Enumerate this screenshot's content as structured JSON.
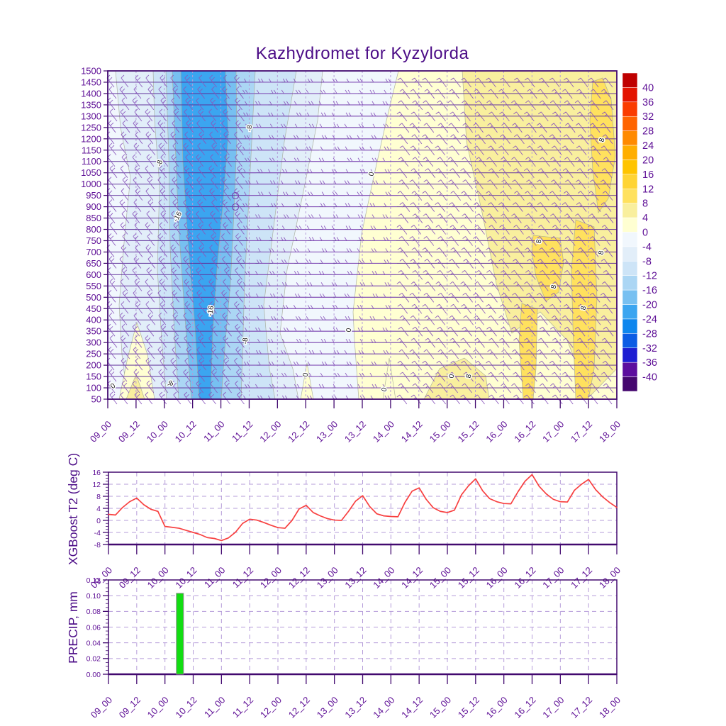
{
  "title": "Kazhydromet for Kyzylorda",
  "colors": {
    "frame": "#42096f",
    "tick_text": "#5e0f96",
    "title_text": "#4c0d87",
    "grid_dashed": "#b59cd9",
    "row_line": "#5d2e99",
    "barb": "#8a56bd",
    "contour_line": "#a3a895",
    "contour_label_text": "#1a1a1a",
    "t2_line": "#f84040",
    "precip_bar": "#12dd12",
    "precip_bar_stroke": "#8a8a8a",
    "plot_background": "#f1f7fd"
  },
  "time_labels": [
    "09_00",
    "09_12",
    "10_00",
    "10_12",
    "11_00",
    "11_12",
    "12_00",
    "12_12",
    "13_00",
    "13_12",
    "14_00",
    "14_12",
    "15_00",
    "15_12",
    "16_00",
    "16_12",
    "17_00",
    "17_12",
    "18_00"
  ],
  "chart_data": [
    {
      "type": "heatmap",
      "subtype": "contour-meteogram-with-wind-barbs",
      "title": "Kazhydromet for Kyzylorda",
      "y_ticks": [
        1500,
        1450,
        1400,
        1350,
        1300,
        1250,
        1200,
        1150,
        1100,
        1050,
        1000,
        950,
        900,
        850,
        800,
        750,
        700,
        650,
        600,
        550,
        500,
        450,
        400,
        350,
        300,
        250,
        200,
        150,
        100,
        50
      ],
      "x_tick_labels": [
        "09_00",
        "09_12",
        "10_00",
        "10_12",
        "11_00",
        "11_12",
        "12_00",
        "12_12",
        "13_00",
        "13_12",
        "14_00",
        "14_12",
        "15_00",
        "15_12",
        "16_00",
        "16_12",
        "17_00",
        "17_12",
        "18_00"
      ],
      "colorbar": {
        "tick_values": [
          40,
          36,
          32,
          28,
          24,
          20,
          16,
          12,
          8,
          4,
          0,
          -4,
          -8,
          -12,
          -16,
          -20,
          -24,
          -28,
          -32,
          -36,
          -40
        ],
        "cell_colors": [
          "#bf0000",
          "#e31400",
          "#fa3c00",
          "#ff6400",
          "#ff8a00",
          "#ffae00",
          "#ffc400",
          "#ffd435",
          "#ffe15e",
          "#f9ef9e",
          "#ffffd2",
          "#f1f7fd",
          "#e2eef9",
          "#cde4f7",
          "#abd6f4",
          "#77c0f1",
          "#3ba5f0",
          "#0d86ee",
          "#0b5ce4",
          "#1d1dd2",
          "#5c0d9e",
          "#45076f"
        ]
      },
      "bands": [
        {
          "range": "-8..-4",
          "color": "#e2eef9",
          "pts": [
            [
              163,
              100
            ],
            [
              455,
              100
            ],
            [
              448,
              170
            ],
            [
              428,
              270
            ],
            [
              405,
              380
            ],
            [
              395,
              470
            ],
            [
              413,
              520
            ],
            [
              421,
              563
            ],
            [
              180,
              563
            ],
            [
              172,
              500
            ],
            [
              168,
              430
            ],
            [
              176,
              330
            ],
            [
              184,
              250
            ],
            [
              170,
              180
            ]
          ]
        },
        {
          "range": "-12..-8",
          "color": "#cde4f7",
          "pts": [
            [
              216,
              100
            ],
            [
              418,
              100
            ],
            [
              401,
              200
            ],
            [
              386,
              320
            ],
            [
              372,
              430
            ],
            [
              380,
              520
            ],
            [
              388,
              563
            ],
            [
              235,
              563
            ],
            [
              228,
              480
            ],
            [
              222,
              380
            ],
            [
              225,
              260
            ],
            [
              218,
              170
            ]
          ]
        },
        {
          "range": "-16..-12",
          "color": "#abd6f4",
          "pts": [
            [
              234,
              100
            ],
            [
              360,
              100
            ],
            [
              355,
              200
            ],
            [
              350,
              300
            ],
            [
              345,
              400
            ],
            [
              342,
              500
            ],
            [
              340,
              563
            ],
            [
              252,
              563
            ],
            [
              246,
              470
            ],
            [
              240,
              350
            ],
            [
              238,
              220
            ]
          ]
        },
        {
          "range": "-20..-16",
          "color": "#77c0f1",
          "pts": [
            [
              243,
              100
            ],
            [
              333,
              100
            ],
            [
              334,
              200
            ],
            [
              330,
              300
            ],
            [
              325,
              400
            ],
            [
              318,
              480
            ],
            [
              312,
              563
            ],
            [
              270,
              563
            ],
            [
              261,
              450
            ],
            [
              252,
              320
            ],
            [
              247,
              200
            ]
          ]
        },
        {
          "range": "-24..-20",
          "color": "#3ba5f0",
          "pts": [
            [
              255,
              100
            ],
            [
              318,
              100
            ],
            [
              322,
              190
            ],
            [
              315,
              280
            ],
            [
              306,
              380
            ],
            [
              300,
              470
            ],
            [
              297,
              563
            ],
            [
              281,
              563
            ],
            [
              275,
              460
            ],
            [
              265,
              340
            ],
            [
              258,
              230
            ]
          ]
        },
        {
          "range": "0..4",
          "color": "#ffffd2",
          "pts": [
            [
              562,
              100
            ],
            [
              870,
              100
            ],
            [
              870,
              563
            ],
            [
              506,
              563
            ],
            [
              500,
              480
            ],
            [
              498,
              440
            ],
            [
              510,
              330
            ],
            [
              527,
              250
            ],
            [
              545,
              170
            ]
          ]
        },
        {
          "range": "4..8",
          "color": "#f9ef9e",
          "pts": [
            [
              658,
              200
            ],
            [
              652,
              100
            ],
            [
              870,
              100
            ],
            [
              870,
              520
            ],
            [
              831,
              560
            ],
            [
              800,
              480
            ],
            [
              762,
              440
            ],
            [
              722,
              470
            ],
            [
              700,
              400
            ],
            [
              680,
              300
            ]
          ]
        },
        {
          "range": "8..12",
          "color": "#ffe15e",
          "pts": [
            [
              836,
              115
            ],
            [
              850,
              110
            ],
            [
              862,
              140
            ],
            [
              868,
              220
            ],
            [
              858,
              280
            ],
            [
              844,
              300
            ],
            [
              836,
              240
            ],
            [
              832,
              170
            ]
          ]
        },
        {
          "range": "8..12",
          "color": "#ffe15e",
          "pts": [
            [
              752,
              332
            ],
            [
              790,
              336
            ],
            [
              795,
              370
            ],
            [
              788,
              412
            ],
            [
              770,
              425
            ],
            [
              756,
              390
            ],
            [
              750,
              355
            ]
          ]
        },
        {
          "range": "8..12",
          "color": "#ffe15e",
          "pts": [
            [
              812,
              310
            ],
            [
              838,
              320
            ],
            [
              842,
              420
            ],
            [
              838,
              520
            ],
            [
              830,
              563
            ],
            [
              812,
              563
            ],
            [
              808,
              460
            ],
            [
              806,
              380
            ]
          ]
        },
        {
          "range": "8..12",
          "color": "#ffe15e",
          "pts": [
            [
              736,
              428
            ],
            [
              758,
              436
            ],
            [
              756,
              520
            ],
            [
              752,
              563
            ],
            [
              738,
              563
            ],
            [
              732,
              480
            ]
          ]
        },
        {
          "range": "8..12",
          "color": "#ffe15e",
          "pts": [
            [
              648,
              512
            ],
            [
              666,
              516
            ],
            [
              664,
              563
            ],
            [
              650,
              563
            ]
          ]
        },
        {
          "range": "0..4",
          "color": "#ffffd2",
          "pts": [
            [
              168,
              563
            ],
            [
              218,
              563
            ],
            [
              208,
              500
            ],
            [
              193,
              455
            ],
            [
              180,
              505
            ]
          ]
        },
        {
          "range": "4..8",
          "color": "#f9ef9e",
          "pts": [
            [
              178,
              563
            ],
            [
              204,
              563
            ],
            [
              192,
              528
            ]
          ]
        },
        {
          "range": "0..4",
          "color": "#ffffd2",
          "pts": [
            [
              424,
              563
            ],
            [
              442,
              563
            ],
            [
              433,
              512
            ]
          ]
        },
        {
          "range": "0..4",
          "color": "#ffffd2",
          "pts": [
            [
              540,
              563
            ],
            [
              558,
              563
            ],
            [
              549,
              505
            ]
          ]
        },
        {
          "range": "4..8",
          "color": "#f9ef9e",
          "pts": [
            [
              598,
              563
            ],
            [
              690,
              563
            ],
            [
              685,
              530
            ],
            [
              655,
              505
            ],
            [
              620,
              520
            ]
          ]
        }
      ],
      "contour_labels": [
        {
          "text": "-8",
          "x": 228,
          "y": 231,
          "rot": -75
        },
        {
          "text": "-16",
          "x": 253,
          "y": 307,
          "rot": -62
        },
        {
          "text": "-8",
          "x": 355,
          "y": 181,
          "rot": -86
        },
        {
          "text": "0",
          "x": 527,
          "y": 246,
          "rot": -80
        },
        {
          "text": "-16",
          "x": 300,
          "y": 439,
          "rot": -80
        },
        {
          "text": "-8",
          "x": 349,
          "y": 481,
          "rot": -86
        },
        {
          "text": "-8",
          "x": 241,
          "y": 544,
          "rot": -25
        },
        {
          "text": "0",
          "x": 161,
          "y": 547,
          "rot": -35
        },
        {
          "text": "0",
          "x": 495,
          "y": 466,
          "rot": -82
        },
        {
          "text": "0",
          "x": 434,
          "y": 529,
          "rot": -82
        },
        {
          "text": "0",
          "x": 545,
          "y": 550,
          "rot": -78
        },
        {
          "text": "0",
          "x": 640,
          "y": 531,
          "rot": -82
        },
        {
          "text": "8",
          "x": 664,
          "y": 531,
          "rot": -82
        },
        {
          "text": "8",
          "x": 852,
          "y": 198,
          "rot": -80
        },
        {
          "text": "8",
          "x": 763,
          "y": 341,
          "rot": -80
        },
        {
          "text": "8",
          "x": 851,
          "y": 357,
          "rot": -80
        },
        {
          "text": "8",
          "x": 784,
          "y": 405,
          "rot": -80
        },
        {
          "text": "8",
          "x": 826,
          "y": 435,
          "rot": -80
        }
      ],
      "station_circles": [
        [
          332,
          276
        ],
        [
          332,
          292
        ]
      ]
    },
    {
      "type": "line",
      "ylabel": "XGBoost T2 (deg C)",
      "ylim": [
        -8,
        16
      ],
      "y_ticks": [
        16,
        12,
        8,
        4,
        0,
        -4,
        -8
      ],
      "x_tick_labels": [
        "09_00",
        "09_12",
        "10_00",
        "10_12",
        "11_00",
        "11_12",
        "12_00",
        "12_12",
        "13_00",
        "13_12",
        "14_00",
        "14_12",
        "15_00",
        "15_12",
        "16_00",
        "16_12",
        "17_00",
        "17_12",
        "18_00"
      ],
      "x_start_tick": 0,
      "x_step_ticks": 0.25,
      "values": [
        2.0,
        1.8,
        4.3,
        6.2,
        7.4,
        5.2,
        3.7,
        3.0,
        -2.0,
        -2.3,
        -2.6,
        -3.3,
        -4.0,
        -4.7,
        -5.7,
        -6.0,
        -6.7,
        -5.8,
        -3.9,
        -1.0,
        0.4,
        0.1,
        -0.7,
        -1.6,
        -2.4,
        -2.6,
        0.0,
        3.8,
        5.0,
        2.6,
        1.5,
        0.6,
        0.1,
        0.0,
        3.0,
        6.4,
        8.2,
        4.6,
        2.2,
        1.5,
        1.3,
        1.2,
        6.0,
        9.7,
        10.8,
        7.0,
        4.2,
        3.0,
        2.6,
        3.4,
        8.5,
        11.5,
        13.8,
        9.8,
        7.2,
        6.2,
        5.6,
        5.5,
        9.5,
        13.0,
        15.2,
        11.3,
        8.8,
        7.0,
        6.2,
        6.1,
        10.0,
        12.0,
        13.6,
        10.2,
        7.8,
        5.9,
        4.3
      ]
    },
    {
      "type": "bar",
      "ylabel": "PRECIP, mm",
      "ylim": [
        0,
        0.12
      ],
      "y_tick_labels": [
        "0.12",
        "0.10",
        "0.08",
        "0.06",
        "0.04",
        "0.02",
        "0.00"
      ],
      "x_tick_labels": [
        "09_00",
        "09_12",
        "10_00",
        "10_12",
        "11_00",
        "11_12",
        "12_00",
        "12_12",
        "13_00",
        "13_12",
        "14_00",
        "14_12",
        "15_00",
        "15_12",
        "16_00",
        "16_12",
        "17_00",
        "17_12",
        "18_00"
      ],
      "bars": [
        {
          "t": 2.53,
          "value": 0.103
        }
      ]
    }
  ]
}
